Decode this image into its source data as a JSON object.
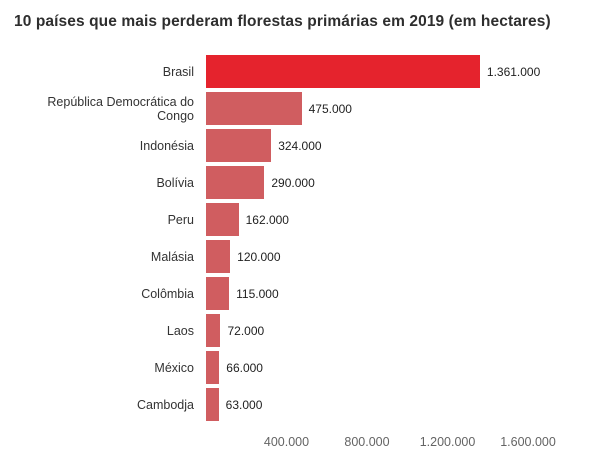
{
  "chart_data": {
    "type": "bar",
    "orientation": "horizontal",
    "title": "10 países que mais perderam florestas primárias em 2019 (em hectares)",
    "categories": [
      "Brasil",
      "República Democrática do Congo",
      "Indonésia",
      "Bolívia",
      "Peru",
      "Malásia",
      "Colômbia",
      "Laos",
      "México",
      "Cambodja"
    ],
    "values": [
      1361000,
      475000,
      324000,
      290000,
      162000,
      120000,
      115000,
      72000,
      66000,
      63000
    ],
    "value_labels": [
      "1.361.000",
      "475.000",
      "324.000",
      "290.000",
      "162.000",
      "120.000",
      "115.000",
      "72.000",
      "66.000",
      "63.000"
    ],
    "xlabel": "",
    "ylabel": "",
    "xlim": [
      0,
      1600000
    ],
    "x_ticks": [
      {
        "value": 400000,
        "label": "400.000"
      },
      {
        "value": 800000,
        "label": "800.000"
      },
      {
        "value": 1200000,
        "label": "1.200.000"
      },
      {
        "value": 1600000,
        "label": "1.600.000"
      }
    ],
    "grid": false,
    "legend": "none",
    "highlight_index": 0,
    "colors": {
      "highlight_bar": "#e5232d",
      "bar": "#d05d60",
      "title_text": "#2e2e2e",
      "category_text": "#333333",
      "value_text": "#1f1f1f",
      "axis_text": "#646464",
      "background": "#ffffff"
    }
  }
}
